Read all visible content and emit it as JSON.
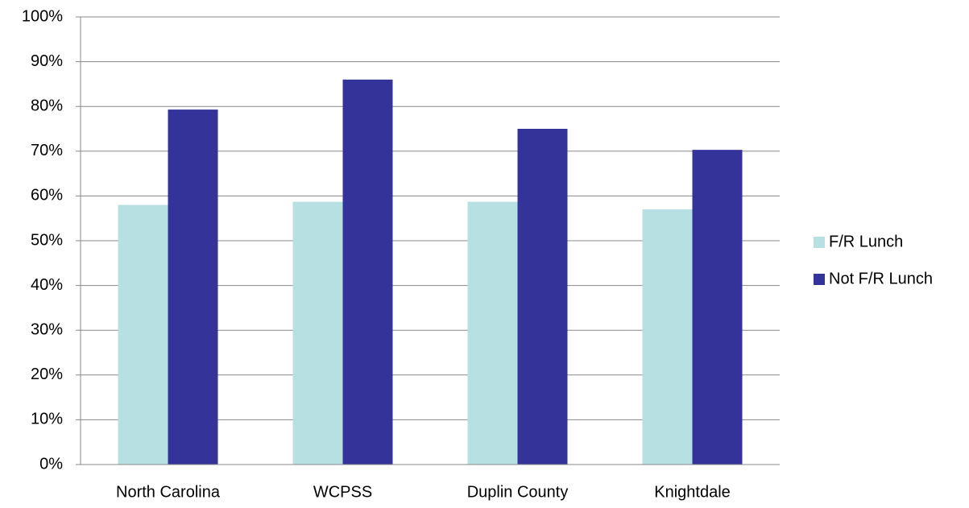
{
  "chart_data": {
    "type": "bar",
    "categories": [
      "North Carolina",
      "WCPSS",
      "Duplin County",
      "Knightdale"
    ],
    "series": [
      {
        "name": "F/R Lunch",
        "color": "#b7e0e3",
        "values": [
          58,
          58.7,
          58.7,
          57
        ]
      },
      {
        "name": "Not F/R Lunch",
        "color": "#333399",
        "values": [
          79.3,
          86,
          75,
          70.3
        ]
      }
    ],
    "ylim": [
      0,
      100
    ],
    "yticks": [
      {
        "value": 0,
        "label": "0%"
      },
      {
        "value": 10,
        "label": "10%"
      },
      {
        "value": 20,
        "label": "20%"
      },
      {
        "value": 30,
        "label": "30%"
      },
      {
        "value": 40,
        "label": "40%"
      },
      {
        "value": 50,
        "label": "50%"
      },
      {
        "value": 60,
        "label": "60%"
      },
      {
        "value": 70,
        "label": "70%"
      },
      {
        "value": 80,
        "label": "80%"
      },
      {
        "value": 90,
        "label": "90%"
      },
      {
        "value": 100,
        "label": "100%"
      }
    ],
    "grid": true,
    "legend": "right"
  }
}
